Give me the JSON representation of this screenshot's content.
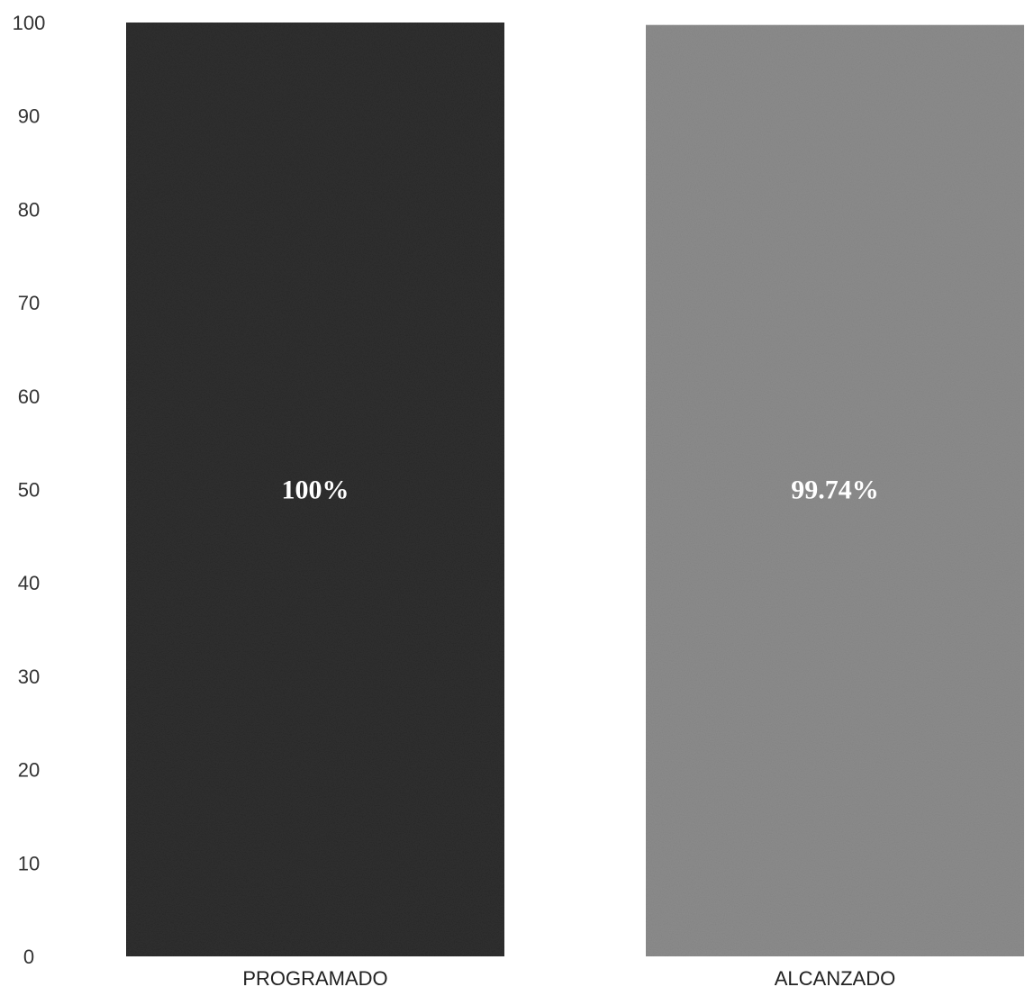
{
  "chart_data": {
    "type": "bar",
    "title": "",
    "xlabel": "",
    "ylabel": "",
    "categories": [
      "PROGRAMADO",
      "ALCANZADO"
    ],
    "values": [
      100,
      99.74
    ],
    "data_labels": [
      "100%",
      "99.74%"
    ],
    "colors": [
      "#2e2e2e",
      "#8c8c8c"
    ],
    "ylim": [
      0,
      100
    ],
    "yticks": [
      0,
      10,
      20,
      30,
      40,
      50,
      60,
      70,
      80,
      90,
      100
    ],
    "grid": false,
    "legend": "none"
  }
}
